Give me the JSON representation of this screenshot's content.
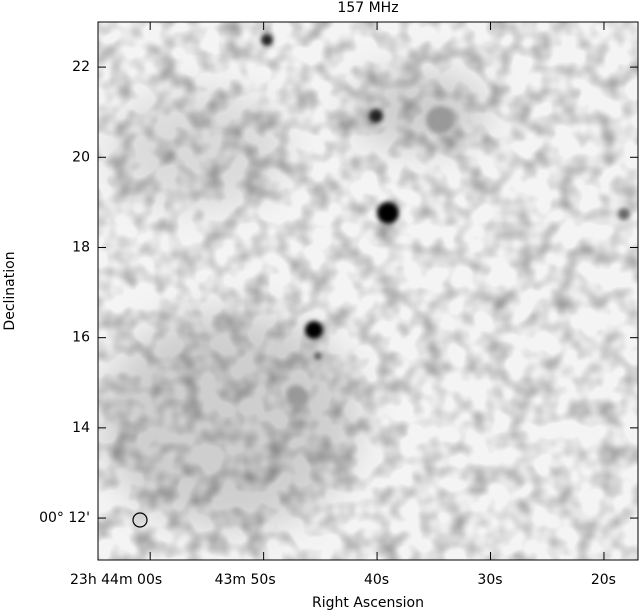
{
  "chart_data": {
    "type": "image",
    "title": "157 MHz",
    "xlabel": "Right Ascension",
    "ylabel": "Declination",
    "xlim": [
      64.6,
      17.0
    ],
    "xticks": [
      {
        "value": 60,
        "label": "23h 44m 00s"
      },
      {
        "value": 50,
        "label": "43m 50s"
      },
      {
        "value": 40,
        "label": "40s"
      },
      {
        "value": 30,
        "label": "30s"
      },
      {
        "value": 20,
        "label": "20s"
      }
    ],
    "ylim": [
      11.07,
      23.0
    ],
    "yticks": [
      {
        "value": 12,
        "label": "00° 12'"
      },
      14,
      16,
      18,
      20,
      22
    ]
  }
}
